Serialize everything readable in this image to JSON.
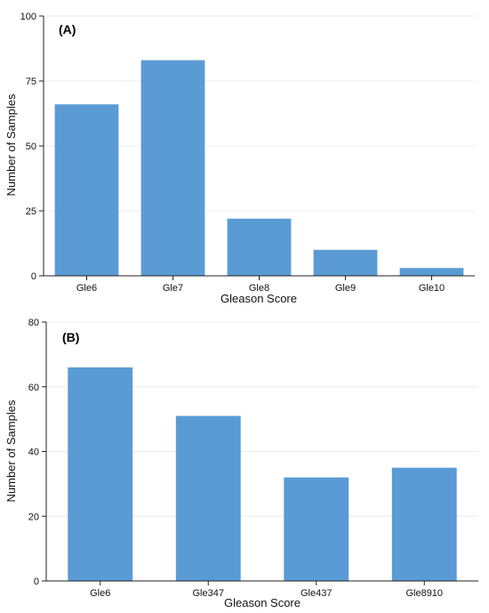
{
  "chart_data": [
    {
      "type": "bar",
      "panel_label": "(A)",
      "categories": [
        "Gle6",
        "Gle7",
        "Gle8",
        "Gle9",
        "Gle10"
      ],
      "values": [
        66,
        83,
        22,
        10,
        3
      ],
      "xlabel": "Gleason Score",
      "ylabel": "Number of Samples",
      "ylim": [
        0,
        100
      ],
      "yticks": [
        0,
        25,
        50,
        75,
        100
      ],
      "grid": "horizontal",
      "bar_color": "#5b9bd5"
    },
    {
      "type": "bar",
      "panel_label": "(B)",
      "categories": [
        "Gle6",
        "Gle347",
        "Gle437",
        "Gle8910"
      ],
      "values": [
        66,
        51,
        32,
        35
      ],
      "xlabel": "Gleason Score",
      "ylabel": "Number of Samples",
      "ylim": [
        0,
        80
      ],
      "yticks": [
        0,
        20,
        40,
        60,
        80
      ],
      "grid": "horizontal",
      "bar_color": "#5b9bd5"
    }
  ]
}
